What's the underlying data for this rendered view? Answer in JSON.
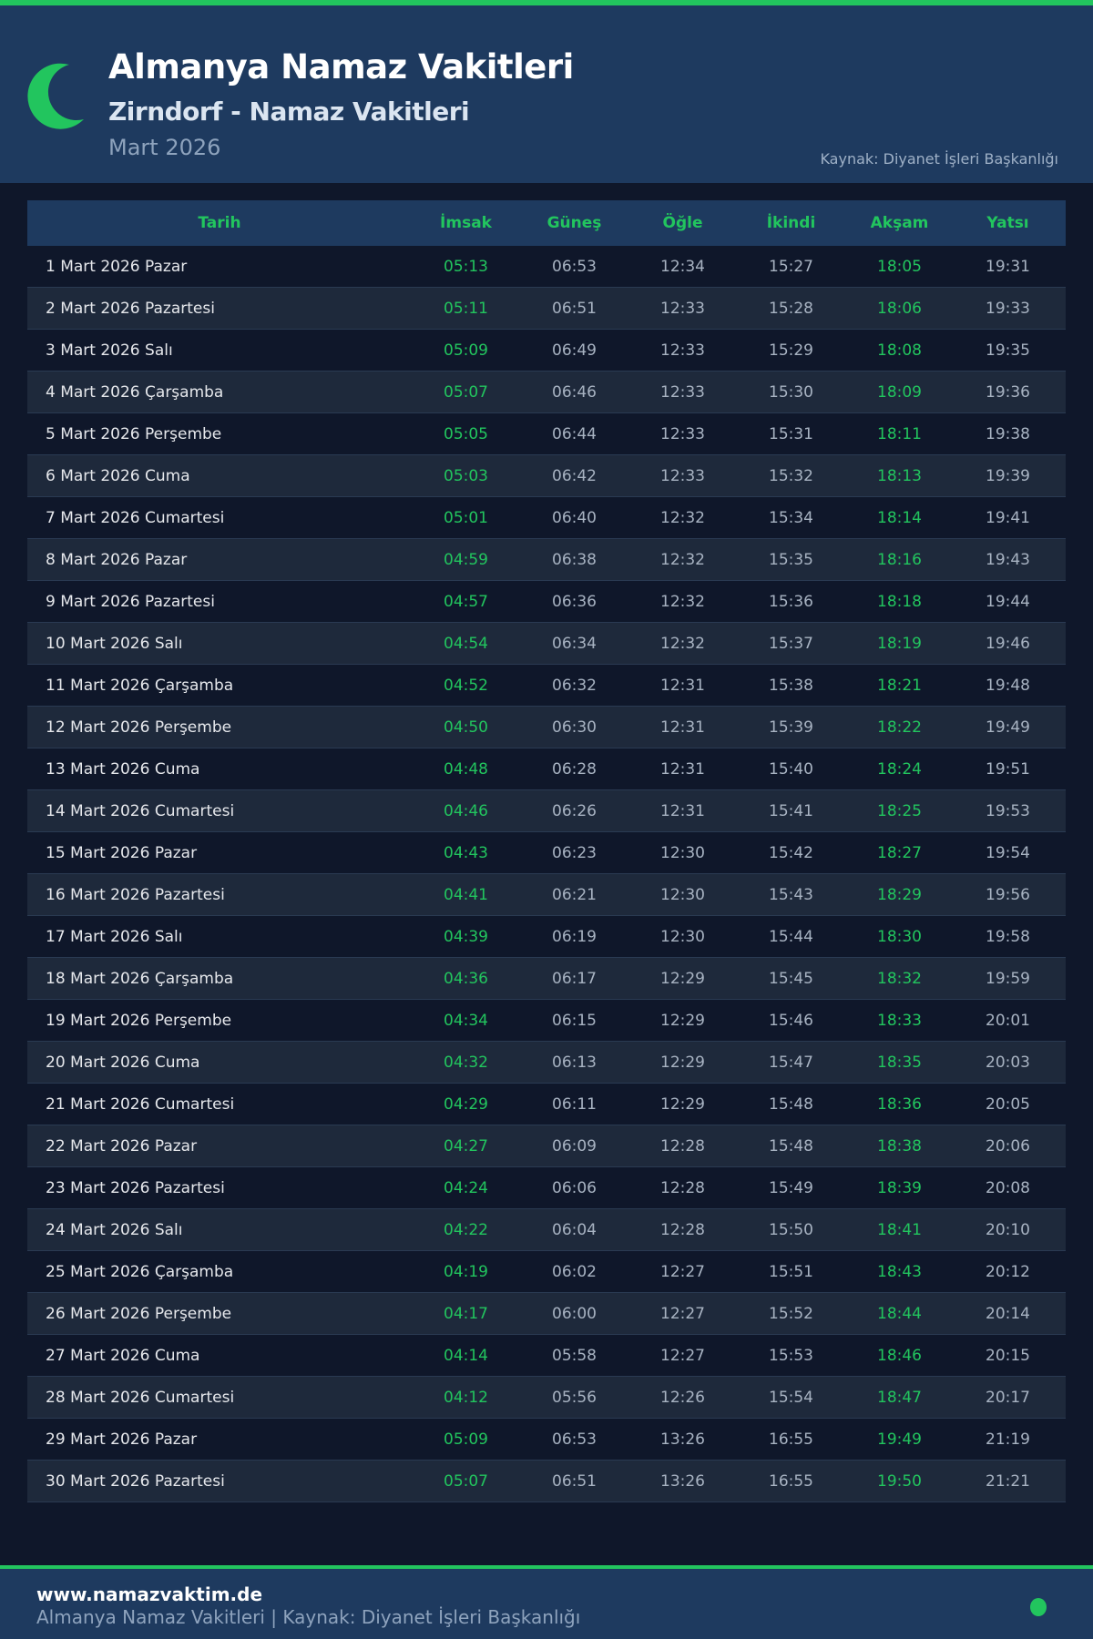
{
  "header": {
    "title": "Almanya Namaz Vakitleri",
    "subtitle": "Zirndorf - Namaz Vakitleri",
    "month": "Mart 2026",
    "source": "Kaynak: Diyanet İşleri Başkanlığı",
    "icon": "crescent-moon-icon"
  },
  "colors": {
    "accent": "#22c55e",
    "header_bg": "#1e3a5f",
    "page_bg": "#0f172a",
    "alt_row": "#1e293b"
  },
  "table": {
    "columns": [
      "Tarih",
      "İmsak",
      "Güneş",
      "Öğle",
      "İkindi",
      "Akşam",
      "Yatsı"
    ],
    "rows": [
      [
        "1 Mart 2026 Pazar",
        "05:13",
        "06:53",
        "12:34",
        "15:27",
        "18:05",
        "19:31"
      ],
      [
        "2 Mart 2026 Pazartesi",
        "05:11",
        "06:51",
        "12:33",
        "15:28",
        "18:06",
        "19:33"
      ],
      [
        "3 Mart 2026 Salı",
        "05:09",
        "06:49",
        "12:33",
        "15:29",
        "18:08",
        "19:35"
      ],
      [
        "4 Mart 2026 Çarşamba",
        "05:07",
        "06:46",
        "12:33",
        "15:30",
        "18:09",
        "19:36"
      ],
      [
        "5 Mart 2026 Perşembe",
        "05:05",
        "06:44",
        "12:33",
        "15:31",
        "18:11",
        "19:38"
      ],
      [
        "6 Mart 2026 Cuma",
        "05:03",
        "06:42",
        "12:33",
        "15:32",
        "18:13",
        "19:39"
      ],
      [
        "7 Mart 2026 Cumartesi",
        "05:01",
        "06:40",
        "12:32",
        "15:34",
        "18:14",
        "19:41"
      ],
      [
        "8 Mart 2026 Pazar",
        "04:59",
        "06:38",
        "12:32",
        "15:35",
        "18:16",
        "19:43"
      ],
      [
        "9 Mart 2026 Pazartesi",
        "04:57",
        "06:36",
        "12:32",
        "15:36",
        "18:18",
        "19:44"
      ],
      [
        "10 Mart 2026 Salı",
        "04:54",
        "06:34",
        "12:32",
        "15:37",
        "18:19",
        "19:46"
      ],
      [
        "11 Mart 2026 Çarşamba",
        "04:52",
        "06:32",
        "12:31",
        "15:38",
        "18:21",
        "19:48"
      ],
      [
        "12 Mart 2026 Perşembe",
        "04:50",
        "06:30",
        "12:31",
        "15:39",
        "18:22",
        "19:49"
      ],
      [
        "13 Mart 2026 Cuma",
        "04:48",
        "06:28",
        "12:31",
        "15:40",
        "18:24",
        "19:51"
      ],
      [
        "14 Mart 2026 Cumartesi",
        "04:46",
        "06:26",
        "12:31",
        "15:41",
        "18:25",
        "19:53"
      ],
      [
        "15 Mart 2026 Pazar",
        "04:43",
        "06:23",
        "12:30",
        "15:42",
        "18:27",
        "19:54"
      ],
      [
        "16 Mart 2026 Pazartesi",
        "04:41",
        "06:21",
        "12:30",
        "15:43",
        "18:29",
        "19:56"
      ],
      [
        "17 Mart 2026 Salı",
        "04:39",
        "06:19",
        "12:30",
        "15:44",
        "18:30",
        "19:58"
      ],
      [
        "18 Mart 2026 Çarşamba",
        "04:36",
        "06:17",
        "12:29",
        "15:45",
        "18:32",
        "19:59"
      ],
      [
        "19 Mart 2026 Perşembe",
        "04:34",
        "06:15",
        "12:29",
        "15:46",
        "18:33",
        "20:01"
      ],
      [
        "20 Mart 2026 Cuma",
        "04:32",
        "06:13",
        "12:29",
        "15:47",
        "18:35",
        "20:03"
      ],
      [
        "21 Mart 2026 Cumartesi",
        "04:29",
        "06:11",
        "12:29",
        "15:48",
        "18:36",
        "20:05"
      ],
      [
        "22 Mart 2026 Pazar",
        "04:27",
        "06:09",
        "12:28",
        "15:48",
        "18:38",
        "20:06"
      ],
      [
        "23 Mart 2026 Pazartesi",
        "04:24",
        "06:06",
        "12:28",
        "15:49",
        "18:39",
        "20:08"
      ],
      [
        "24 Mart 2026 Salı",
        "04:22",
        "06:04",
        "12:28",
        "15:50",
        "18:41",
        "20:10"
      ],
      [
        "25 Mart 2026 Çarşamba",
        "04:19",
        "06:02",
        "12:27",
        "15:51",
        "18:43",
        "20:12"
      ],
      [
        "26 Mart 2026 Perşembe",
        "04:17",
        "06:00",
        "12:27",
        "15:52",
        "18:44",
        "20:14"
      ],
      [
        "27 Mart 2026 Cuma",
        "04:14",
        "05:58",
        "12:27",
        "15:53",
        "18:46",
        "20:15"
      ],
      [
        "28 Mart 2026 Cumartesi",
        "04:12",
        "05:56",
        "12:26",
        "15:54",
        "18:47",
        "20:17"
      ],
      [
        "29 Mart 2026 Pazar",
        "05:09",
        "06:53",
        "13:26",
        "16:55",
        "19:49",
        "21:19"
      ],
      [
        "30 Mart 2026 Pazartesi",
        "05:07",
        "06:51",
        "13:26",
        "16:55",
        "19:50",
        "21:21"
      ]
    ]
  },
  "footer": {
    "site": "www.namazvaktim.de",
    "text": "Almanya Namaz Vakitleri | Kaynak: Diyanet İşleri Başkanlığı",
    "icon": "status-dot-icon"
  }
}
